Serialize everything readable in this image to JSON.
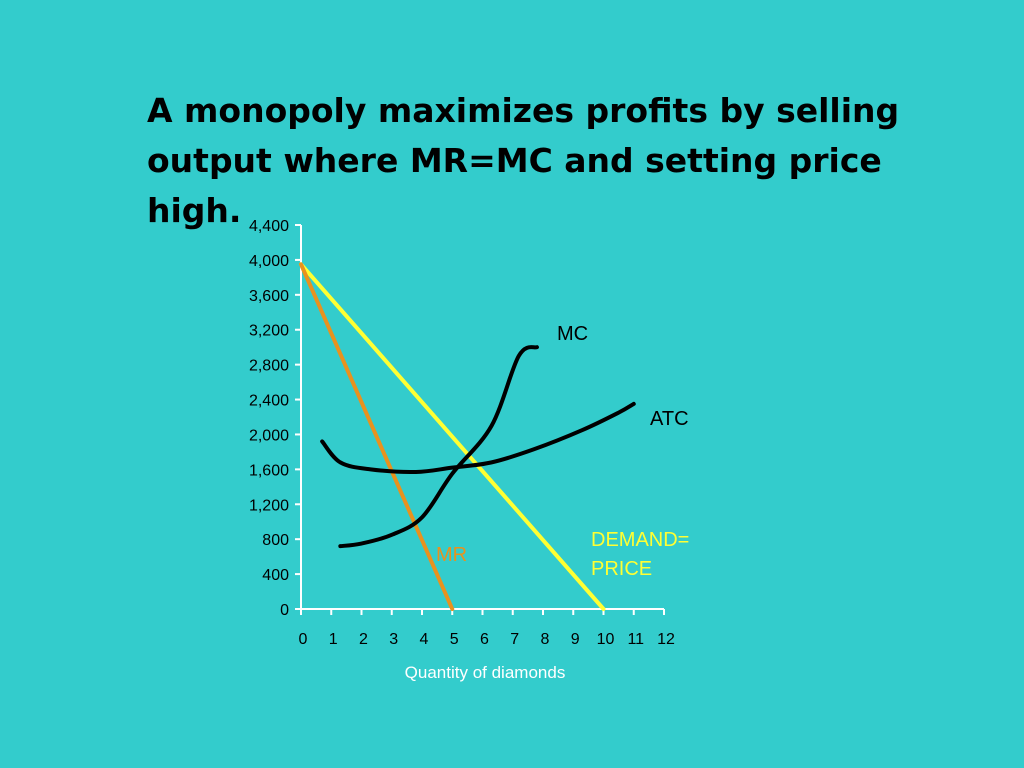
{
  "slide": {
    "title": "A monopoly maximizes profits by selling output where MR=MC and setting price high."
  },
  "colors": {
    "background": "#33cccc",
    "demand": "#ffff33",
    "mr": "#e8921e",
    "mc": "#000000",
    "atc": "#000000",
    "axis": "#ffffff"
  },
  "chart_data": {
    "type": "line",
    "title": "",
    "xlabel": "Quantity of diamonds",
    "ylabel": "",
    "xlim": [
      0,
      12
    ],
    "ylim": [
      0,
      4400
    ],
    "x_ticks": [
      0,
      1,
      2,
      3,
      4,
      5,
      6,
      7,
      8,
      9,
      10,
      11,
      12
    ],
    "y_ticks": [
      0,
      400,
      800,
      1200,
      1600,
      2000,
      2400,
      2800,
      3200,
      3600,
      4000,
      4400
    ],
    "y_tick_labels": [
      "0",
      "400",
      "800",
      "1,200",
      "1,600",
      "2,000",
      "2,400",
      "2,800",
      "3,200",
      "3,600",
      "4,000",
      "4,400"
    ],
    "grid": false,
    "series": [
      {
        "key": "demand",
        "name": "DEMAND=\nPRICE",
        "color": "#ffff33",
        "points": [
          [
            0,
            3950
          ],
          [
            10,
            0
          ]
        ]
      },
      {
        "key": "mr",
        "name": "MR",
        "color": "#e8921e",
        "points": [
          [
            0,
            3950
          ],
          [
            5,
            0
          ]
        ]
      },
      {
        "key": "mc",
        "name": "MC",
        "color": "#000000",
        "points": [
          [
            1.3,
            720
          ],
          [
            2,
            750
          ],
          [
            3,
            850
          ],
          [
            4,
            1050
          ],
          [
            5,
            1550
          ],
          [
            6.3,
            2100
          ],
          [
            7.2,
            2900
          ],
          [
            7.8,
            3000
          ]
        ]
      },
      {
        "key": "atc",
        "name": "ATC",
        "color": "#000000",
        "points": [
          [
            0.7,
            1920
          ],
          [
            1.3,
            1680
          ],
          [
            2.3,
            1600
          ],
          [
            3.8,
            1570
          ],
          [
            5,
            1620
          ],
          [
            6.3,
            1680
          ],
          [
            7.7,
            1830
          ],
          [
            9.3,
            2050
          ],
          [
            10.5,
            2250
          ],
          [
            11,
            2350
          ]
        ]
      }
    ]
  }
}
